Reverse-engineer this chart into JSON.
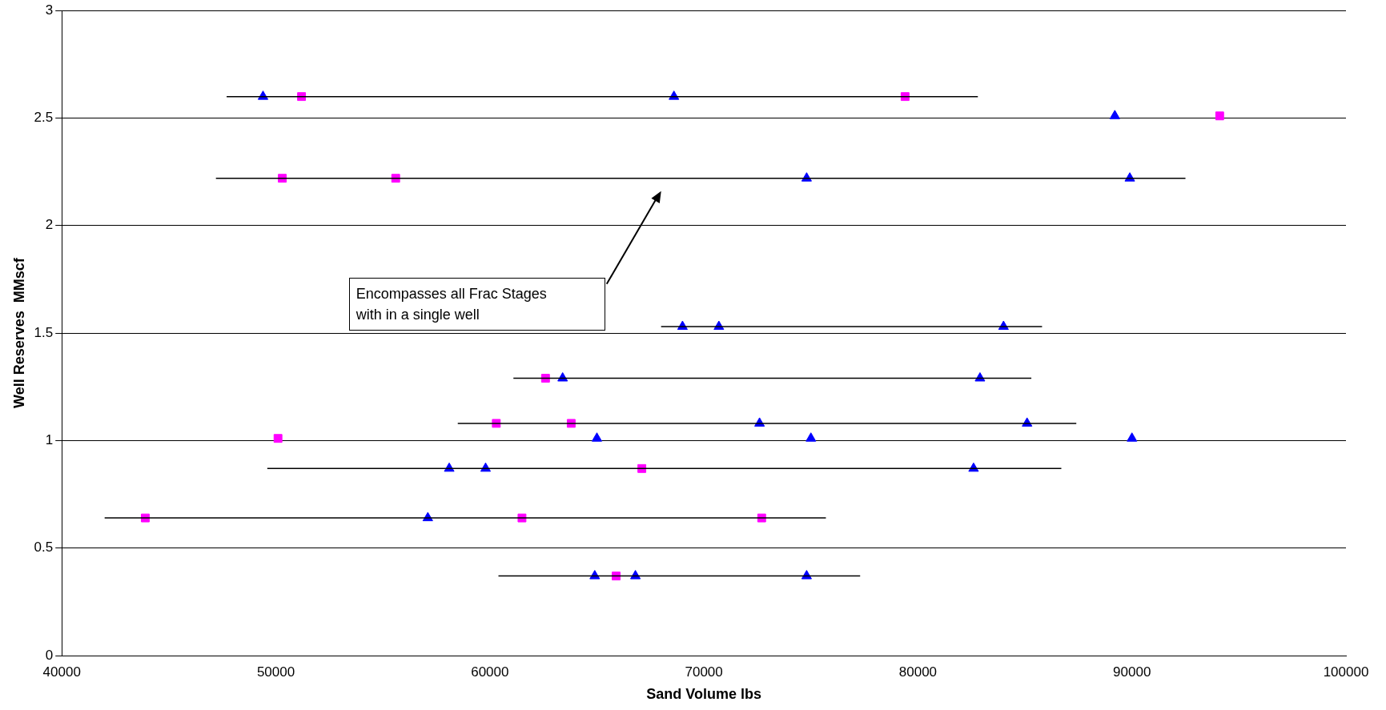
{
  "chart_data": {
    "type": "scatter",
    "xlabel": "Sand Volume lbs",
    "ylabel": "Well Reserves  MMscf",
    "xlim": [
      40000,
      100000
    ],
    "xticks": [
      40000,
      50000,
      60000,
      70000,
      80000,
      90000,
      100000
    ],
    "ylim": [
      0,
      3
    ],
    "yticks": [
      0,
      0.5,
      1,
      1.5,
      2,
      2.5,
      3
    ],
    "grid": "y",
    "legend": false,
    "series": [
      {
        "type": "line",
        "color": "#000000",
        "marker": "none",
        "x": [
          47700,
          82800
        ],
        "values": [
          2.6,
          2.6
        ]
      },
      {
        "type": "line",
        "color": "#000000",
        "marker": "none",
        "x": [
          47200,
          92500
        ],
        "values": [
          2.22,
          2.22
        ]
      },
      {
        "type": "line",
        "color": "#000000",
        "marker": "none",
        "x": [
          68000,
          85800
        ],
        "values": [
          1.53,
          1.53
        ]
      },
      {
        "type": "line",
        "color": "#000000",
        "marker": "none",
        "x": [
          61100,
          85300
        ],
        "values": [
          1.29,
          1.29
        ]
      },
      {
        "type": "line",
        "color": "#000000",
        "marker": "none",
        "x": [
          58500,
          87400
        ],
        "values": [
          1.08,
          1.08
        ]
      },
      {
        "type": "line",
        "color": "#000000",
        "marker": "none",
        "x": [
          49600,
          86700
        ],
        "values": [
          0.87,
          0.87
        ]
      },
      {
        "type": "line",
        "color": "#000000",
        "marker": "none",
        "x": [
          42000,
          75700
        ],
        "values": [
          0.64,
          0.64
        ]
      },
      {
        "type": "line",
        "color": "#000000",
        "marker": "none",
        "x": [
          60400,
          77300
        ],
        "values": [
          0.37,
          0.37
        ]
      },
      {
        "type": "scatter",
        "color": "#0000ff",
        "marker": "triangle",
        "x": [
          49400,
          68600,
          89200,
          74800,
          89900,
          69000,
          70700,
          84000,
          63400,
          82900,
          72600,
          85100,
          65000,
          75000,
          90000,
          58100,
          59800,
          82600,
          57100,
          64900,
          66800,
          74800
        ],
        "values": [
          2.6,
          2.6,
          2.51,
          2.22,
          2.22,
          1.53,
          1.53,
          1.53,
          1.29,
          1.29,
          1.08,
          1.08,
          1.01,
          1.01,
          1.01,
          0.87,
          0.87,
          0.87,
          0.64,
          0.37,
          0.37,
          0.37
        ]
      },
      {
        "type": "scatter",
        "color": "#ff00ff",
        "marker": "square",
        "x": [
          51200,
          79400,
          94100,
          50300,
          55600,
          62600,
          60300,
          63800,
          50100,
          67100,
          43900,
          61500,
          72700,
          65900
        ],
        "values": [
          2.6,
          2.6,
          2.51,
          2.22,
          2.22,
          1.29,
          1.08,
          1.08,
          1.01,
          0.87,
          0.64,
          0.64,
          0.64,
          0.37
        ]
      }
    ],
    "annotations": [
      "Encompasses all Frac Stages with in a single well"
    ]
  }
}
